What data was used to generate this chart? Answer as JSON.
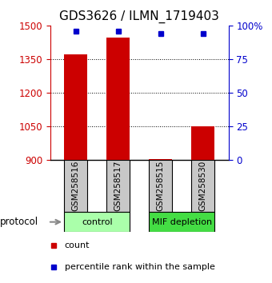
{
  "title": "GDS3626 / ILMN_1719403",
  "samples": [
    "GSM258516",
    "GSM258517",
    "GSM258515",
    "GSM258530"
  ],
  "bar_values": [
    1370,
    1445,
    905,
    1050
  ],
  "percentile_values": [
    96,
    96,
    94,
    94
  ],
  "bar_base": 900,
  "ylim_left": [
    900,
    1500
  ],
  "ylim_right": [
    0,
    100
  ],
  "yticks_left": [
    900,
    1050,
    1200,
    1350,
    1500
  ],
  "yticks_right": [
    0,
    25,
    50,
    75,
    100
  ],
  "ytick_labels_right": [
    "0",
    "25",
    "50",
    "75",
    "100%"
  ],
  "bar_color": "#cc0000",
  "point_color": "#0000cc",
  "groups": [
    {
      "label": "control",
      "indices": [
        0,
        1
      ],
      "color": "#aaffaa"
    },
    {
      "label": "MIF depletion",
      "indices": [
        2,
        3
      ],
      "color": "#44dd44"
    }
  ],
  "protocol_label": "protocol",
  "legend_count_label": "count",
  "legend_pct_label": "percentile rank within the sample",
  "title_fontsize": 11,
  "tick_fontsize": 8.5,
  "sample_box_color": "#c8c8c8",
  "background_color": "#ffffff",
  "bar_width": 0.55
}
